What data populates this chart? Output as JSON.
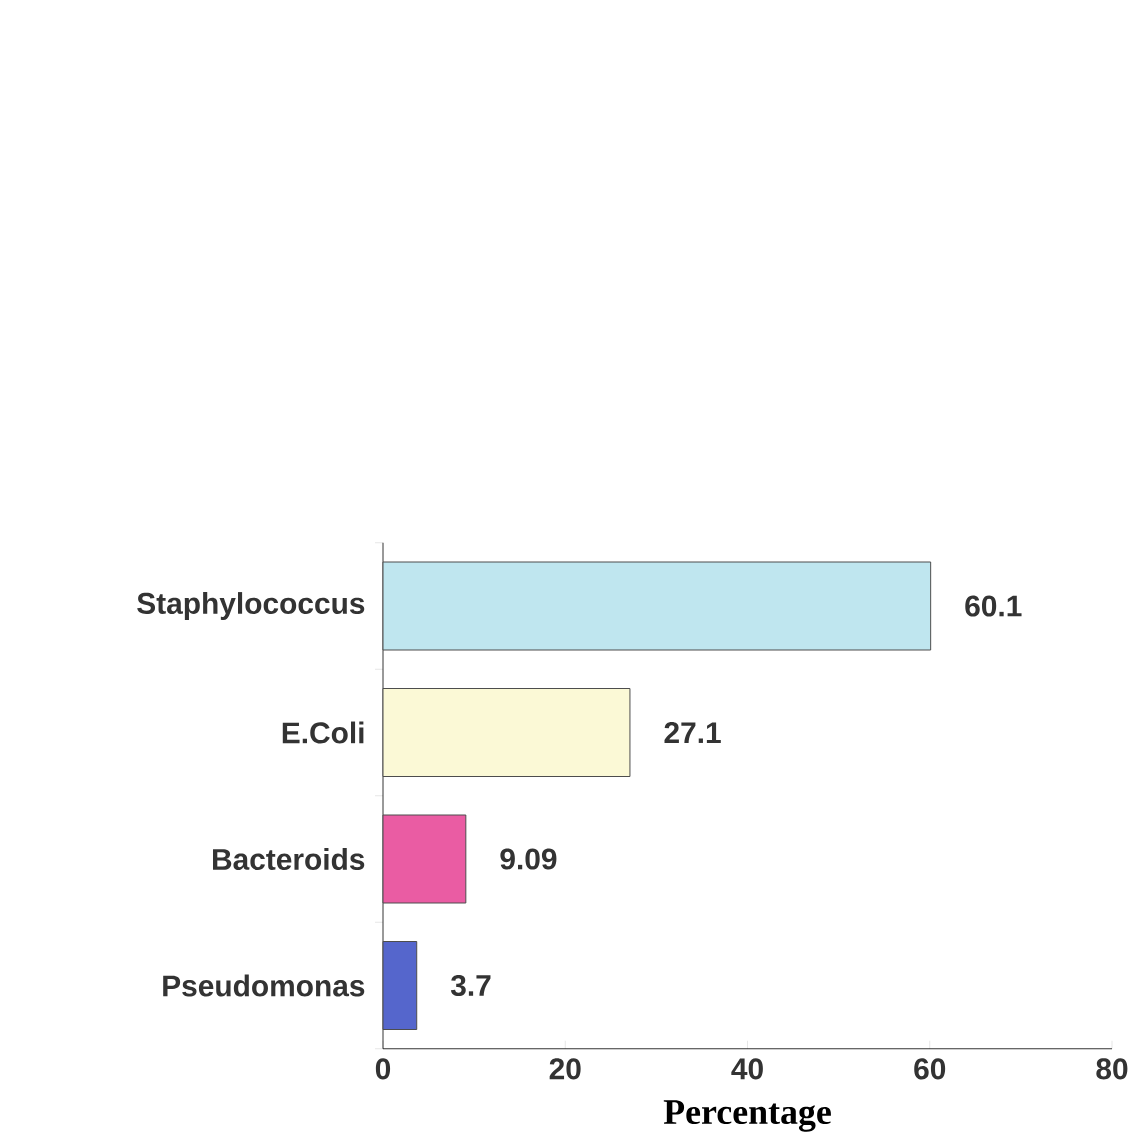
{
  "chart_data": {
    "type": "bar",
    "orientation": "horizontal",
    "xlabel": "Percentage",
    "categories": [
      "Staphylococcus",
      "E.Coli",
      "Bacteroids",
      "Pseudomonas"
    ],
    "values": [
      60.1,
      27.1,
      9.09,
      3.7
    ],
    "colors": [
      "#bfe6ef",
      "#fbf9d6",
      "#ea5ca3",
      "#5566cc"
    ],
    "xlim": [
      0,
      80
    ],
    "xticks": [
      0,
      20,
      40,
      60,
      80
    ],
    "data_labels": true
  }
}
